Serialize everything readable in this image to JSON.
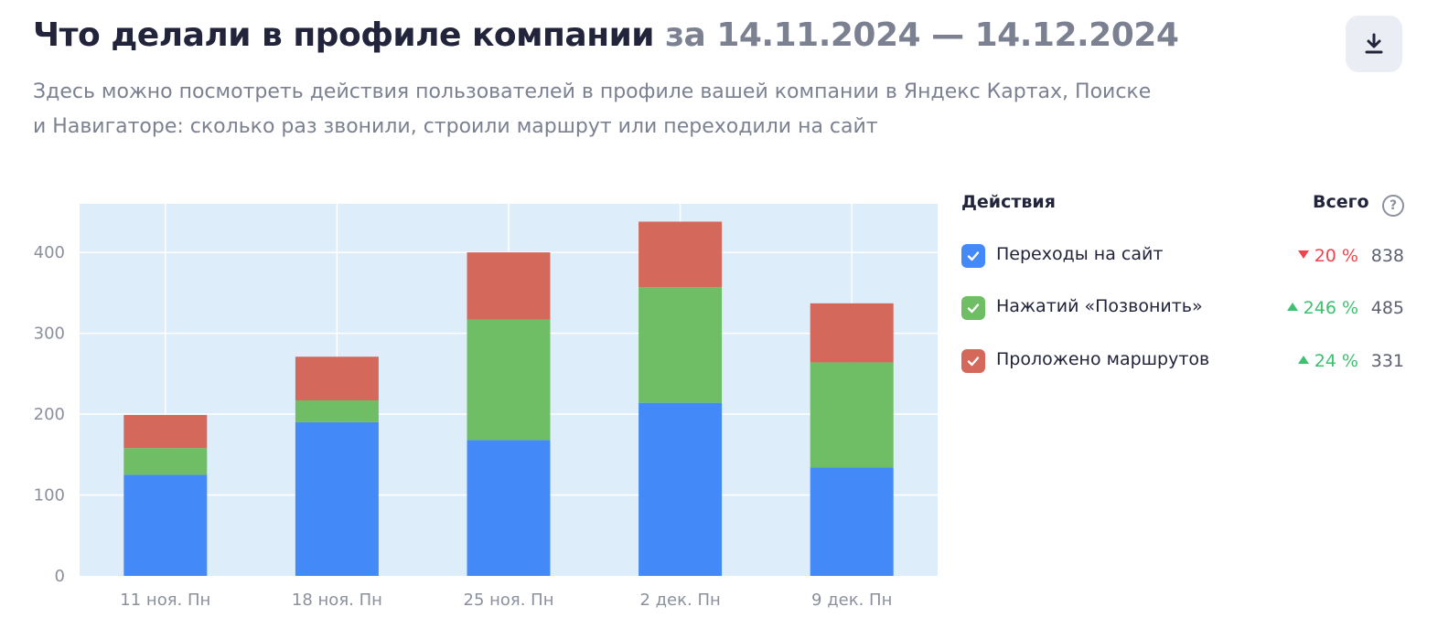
{
  "header": {
    "title": "Что делали в профиле компании",
    "period": "за 14.11.2024 — 14.12.2024",
    "subtitle_line1": "Здесь можно посмотреть действия пользователей в профиле вашей компании в Яндекс Картах, Поиске",
    "subtitle_line2": "и Навигаторе: сколько раз звонили, строили маршрут или переходили на сайт",
    "download_icon": "download-icon"
  },
  "legend": {
    "actions_header": "Действия",
    "total_header": "Всего",
    "help_icon": "?",
    "items": [
      {
        "label": "Переходы на сайт",
        "change": "20 %",
        "trend": "down",
        "total": "838",
        "color": "#4489f8"
      },
      {
        "label": "Нажатий «Позвонить»",
        "change": "246 %",
        "trend": "up",
        "total": "485",
        "color": "#6fbe65"
      },
      {
        "label": "Проложено маршрутов",
        "change": "24 %",
        "trend": "up",
        "total": "331",
        "color": "#d4685b"
      }
    ]
  },
  "colors": {
    "plot_bg": "#ddeefa",
    "grid": "#ffffff",
    "down": "#f0444f",
    "up": "#3fbf70"
  },
  "chart_data": {
    "type": "bar",
    "stacked": true,
    "categories": [
      "11 ноя. Пн",
      "18 ноя. Пн",
      "25 ноя. Пн",
      "2 дек. Пн",
      "9 дек. Пн"
    ],
    "series": [
      {
        "name": "Переходы на сайт",
        "values": [
          125,
          190,
          168,
          214,
          134
        ]
      },
      {
        "name": "Нажатий «Позвонить»",
        "values": [
          33,
          27,
          149,
          143,
          130
        ]
      },
      {
        "name": "Проложено маршрутов",
        "values": [
          41,
          54,
          83,
          81,
          73
        ]
      }
    ],
    "yticks": [
      0,
      100,
      200,
      300,
      400
    ],
    "ylim": [
      0,
      460
    ],
    "grid": true
  }
}
